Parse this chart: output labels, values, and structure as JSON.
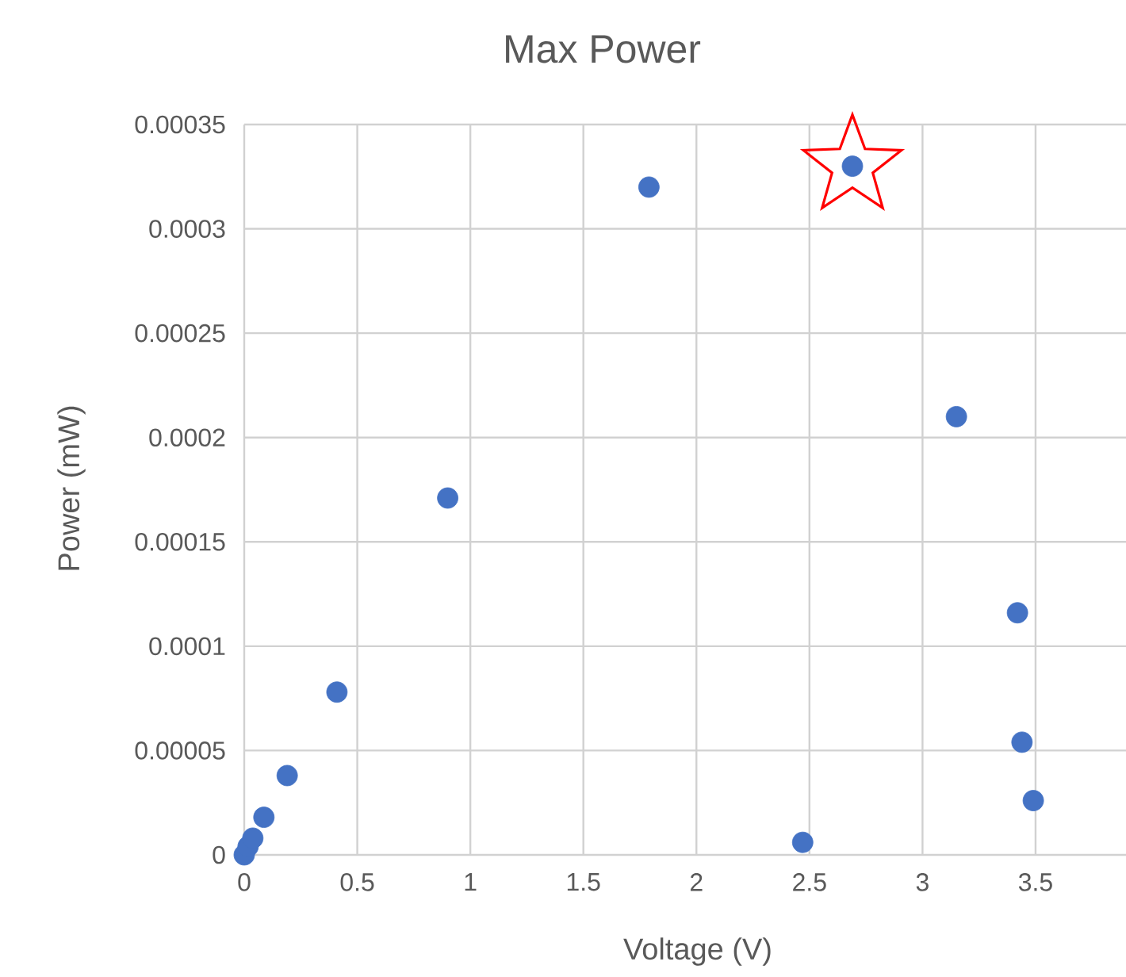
{
  "chart_data": {
    "type": "scatter",
    "title": "Max Power",
    "xlabel": "Voltage (V)",
    "ylabel": "Power (mW)",
    "series": [
      {
        "color": "#4472c4",
        "marker": "circle",
        "x": [
          0,
          0.017,
          0.038,
          0.087,
          0.19,
          0.41,
          0.9,
          1.79,
          2.47,
          2.69,
          3.15,
          3.42,
          3.44,
          3.49
        ],
        "values": [
          0,
          4e-06,
          8e-06,
          1.8e-05,
          3.8e-05,
          7.8e-05,
          0.000171,
          0.00032,
          6e-06,
          0.00033,
          0.00021,
          0.000116,
          5.4e-05,
          2.6e-05
        ]
      },
      {
        "color": "#ff0000",
        "marker": "star",
        "x": [
          2.69
        ],
        "values": [
          0.00033
        ]
      }
    ],
    "xlim": [
      0,
      3.9
    ],
    "ylim": [
      0,
      0.00035
    ],
    "xticks": [
      0,
      0.5,
      1,
      1.5,
      2,
      2.5,
      3,
      3.5
    ],
    "yticks": [
      {
        "value": 0,
        "label": "0"
      },
      {
        "value": 5e-05,
        "label": "0.00005"
      },
      {
        "value": 0.0001,
        "label": "0.0001"
      },
      {
        "value": 0.00015,
        "label": "0.00015"
      },
      {
        "value": 0.0002,
        "label": "0.0002"
      },
      {
        "value": 0.00025,
        "label": "0.00025"
      },
      {
        "value": 0.0003,
        "label": "0.0003"
      },
      {
        "value": 0.00035,
        "label": "0.00035"
      }
    ],
    "grid": true
  }
}
